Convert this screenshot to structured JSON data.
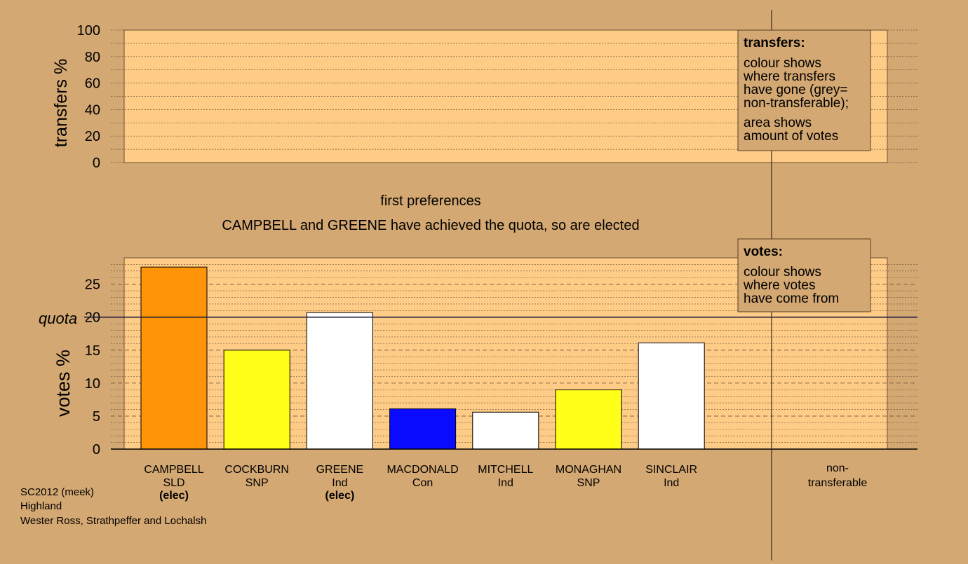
{
  "caption": {
    "stage": "first preferences",
    "message": "CAMPBELL and GREENE have achieved the quota, so are elected"
  },
  "colors": {
    "background": "#d4a872",
    "panel": "#ffcc88",
    "quota_line": "#1c1c3c"
  },
  "chart_data": [
    {
      "type": "bar",
      "ylabel": "transfers %",
      "ylim": [
        0,
        100
      ],
      "yticks": [
        0,
        20,
        40,
        60,
        80,
        100
      ],
      "grid": true,
      "values": [],
      "legend_box": {
        "placement": "top-right",
        "title": "transfers:",
        "lines1": [
          "colour shows",
          "where transfers",
          "have gone (grey=",
          "non-transferable);"
        ],
        "lines2": [
          "area shows",
          "amount of votes"
        ]
      }
    },
    {
      "type": "bar",
      "ylabel": "votes %",
      "ylim": [
        0,
        29
      ],
      "yticks": [
        0,
        5,
        10,
        15,
        20,
        25
      ],
      "grid": true,
      "quota": {
        "label": "quota",
        "value": 20
      },
      "categories": [
        {
          "name": "CAMPBELL",
          "party": "SLD",
          "status": "(elec)",
          "value": 27.6,
          "color": "#ff9408"
        },
        {
          "name": "COCKBURN",
          "party": "SNP",
          "status": "",
          "value": 15.0,
          "color": "#ffff1a"
        },
        {
          "name": "GREENE",
          "party": "Ind",
          "status": "(elec)",
          "value": 20.7,
          "color": "#ffffff"
        },
        {
          "name": "MACDONALD",
          "party": "Con",
          "status": "",
          "value": 6.1,
          "color": "#0a0aff"
        },
        {
          "name": "MITCHELL",
          "party": "Ind",
          "status": "",
          "value": 5.6,
          "color": "#ffffff"
        },
        {
          "name": "MONAGHAN",
          "party": "SNP",
          "status": "",
          "value": 9.0,
          "color": "#ffff1a"
        },
        {
          "name": "SINCLAIR",
          "party": "Ind",
          "status": "",
          "value": 16.1,
          "color": "#ffffff"
        }
      ],
      "nontransferable": {
        "label1": "non-",
        "label2": "transferable",
        "value": 0
      },
      "legend_box": {
        "placement": "top-right",
        "title": "votes:",
        "lines1": [
          "colour shows",
          "where votes",
          "have come from"
        ]
      }
    }
  ],
  "footer": {
    "line1": "SC2012 (meek)",
    "line2": "Highland",
    "line3": "Wester Ross, Strathpeffer and Lochalsh"
  }
}
